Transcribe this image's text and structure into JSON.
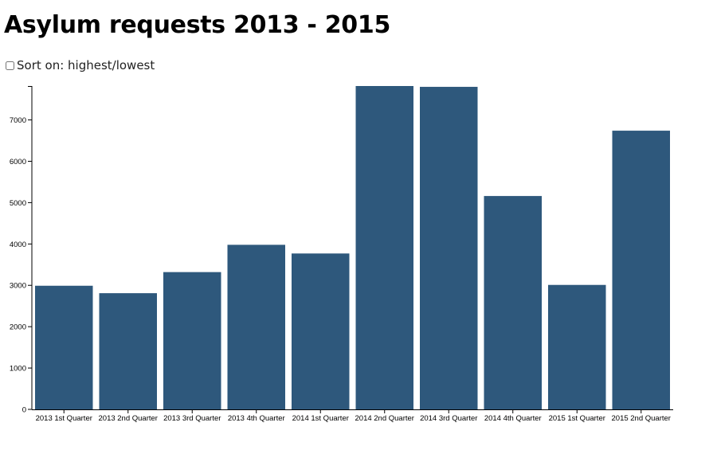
{
  "page": {
    "title": "Asylum requests 2013 - 2015",
    "sort_label": "Sort on: highest/lowest"
  },
  "colors": {
    "bar": "#2e587c",
    "axis": "#000000"
  },
  "chart_data": {
    "type": "bar",
    "title": "",
    "xlabel": "",
    "ylabel": "",
    "categories": [
      "2013 1st Quarter",
      "2013 2nd Quarter",
      "2013 3rd Quarter",
      "2013 4th Quarter",
      "2014 1st Quarter",
      "2014 2nd Quarter",
      "2014 3rd Quarter",
      "2014 4th Quarter",
      "2015 1st Quarter",
      "2015 2nd Quarter"
    ],
    "values": [
      2990,
      2810,
      3320,
      3980,
      3770,
      7820,
      7800,
      5160,
      3010,
      6740
    ],
    "yticks": [
      0,
      1000,
      2000,
      3000,
      4000,
      5000,
      6000,
      7000
    ],
    "ylim": [
      0,
      7820
    ],
    "grid": false,
    "legend": "none"
  }
}
